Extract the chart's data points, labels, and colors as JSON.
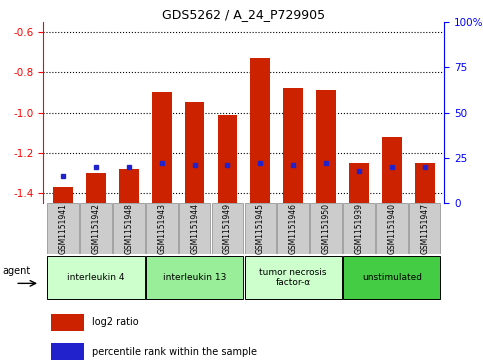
{
  "title": "GDS5262 / A_24_P729905",
  "samples": [
    "GSM1151941",
    "GSM1151942",
    "GSM1151948",
    "GSM1151943",
    "GSM1151944",
    "GSM1151949",
    "GSM1151945",
    "GSM1151946",
    "GSM1151950",
    "GSM1151939",
    "GSM1151940",
    "GSM1151947"
  ],
  "log2_ratio": [
    -1.37,
    -1.3,
    -1.28,
    -0.9,
    -0.95,
    -1.01,
    -0.73,
    -0.88,
    -0.89,
    -1.25,
    -1.12,
    -1.25
  ],
  "percentile": [
    15,
    20,
    20,
    22,
    21,
    21,
    22,
    21,
    22,
    18,
    20,
    20
  ],
  "bar_color": "#cc2200",
  "blue_color": "#2222cc",
  "ylim_left": [
    -1.45,
    -0.55
  ],
  "ylim_right": [
    0,
    100
  ],
  "yticks_left": [
    -1.4,
    -1.2,
    -1.0,
    -0.8,
    -0.6
  ],
  "yticks_right": [
    0,
    25,
    50,
    75,
    100
  ],
  "groups": [
    {
      "label": "interleukin 4",
      "start": 0,
      "end": 3,
      "color": "#ccffcc"
    },
    {
      "label": "interleukin 13",
      "start": 3,
      "end": 6,
      "color": "#99ee99"
    },
    {
      "label": "tumor necrosis\nfactor-α",
      "start": 6,
      "end": 9,
      "color": "#ccffcc"
    },
    {
      "label": "unstimulated",
      "start": 9,
      "end": 12,
      "color": "#44cc44"
    }
  ],
  "legend_red_label": "log2 ratio",
  "legend_blue_label": "percentile rank within the sample",
  "agent_label": "agent",
  "bar_width": 0.6,
  "sample_box_color": "#cccccc"
}
